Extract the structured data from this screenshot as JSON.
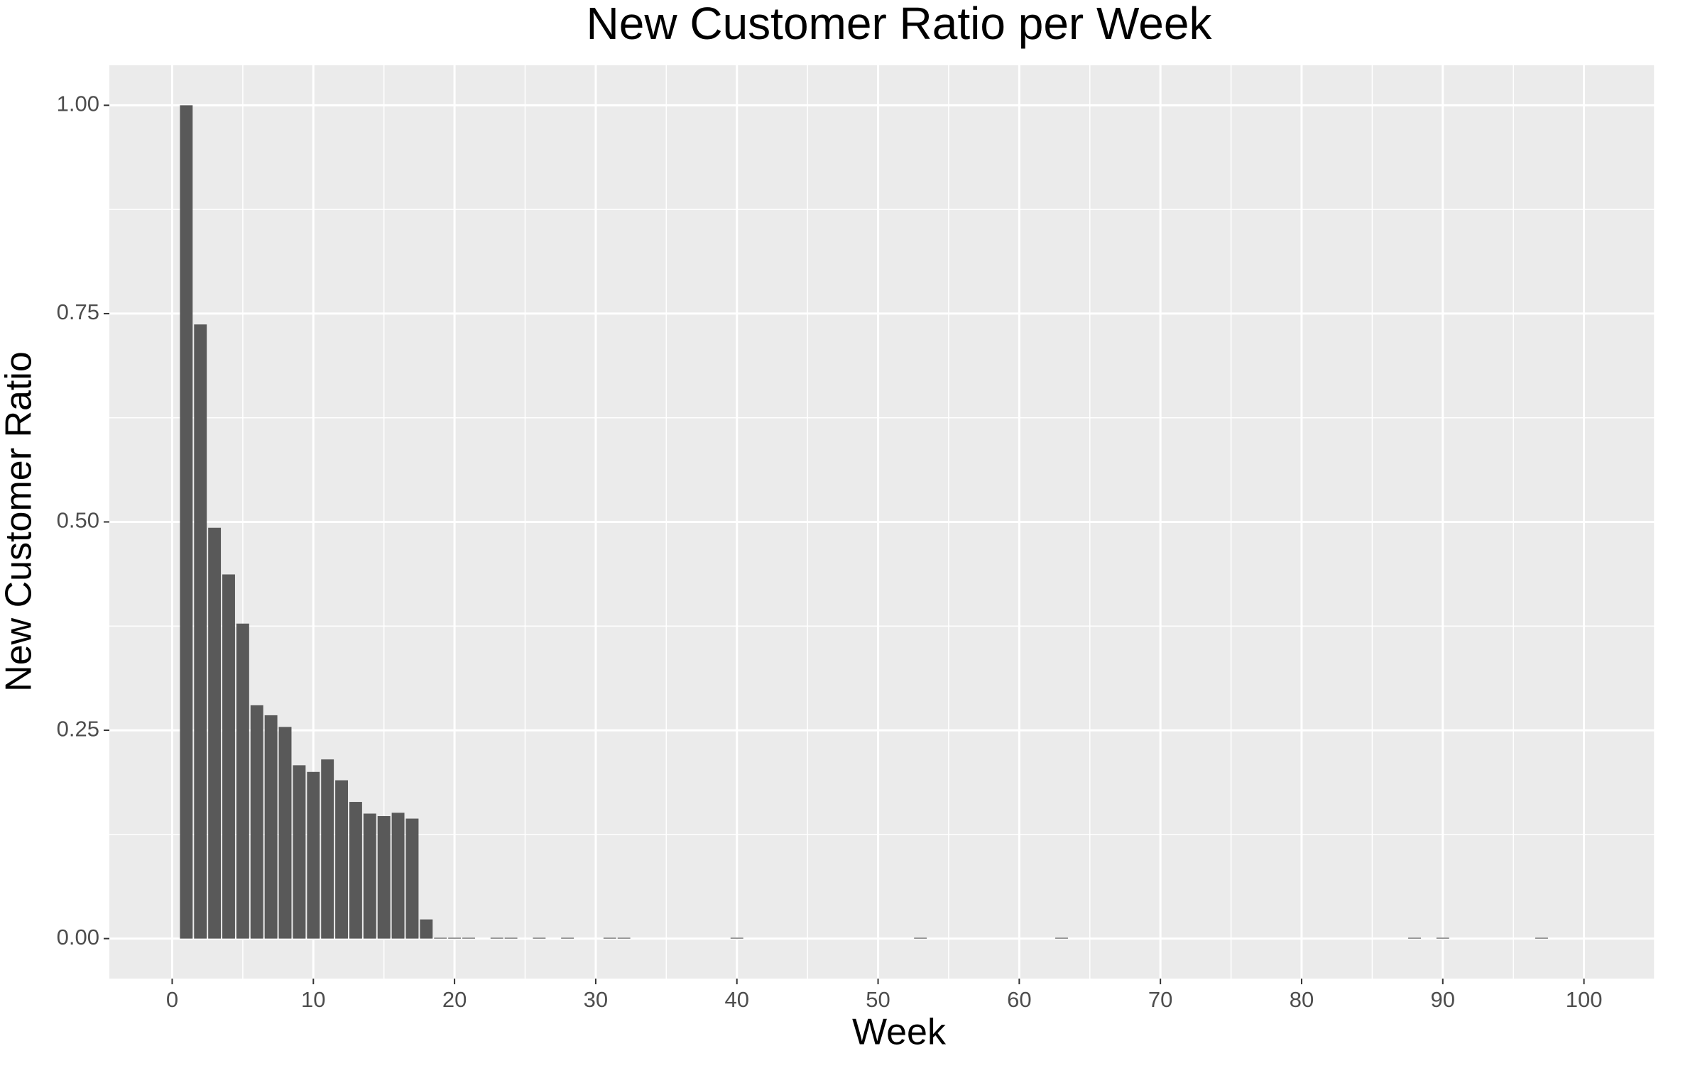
{
  "chart_data": {
    "type": "bar",
    "title": "New Customer Ratio per Week",
    "x_label": "Week",
    "y_label": "New Customer Ratio",
    "x": [
      1,
      2,
      3,
      4,
      5,
      6,
      7,
      8,
      9,
      10,
      11,
      12,
      13,
      14,
      15,
      16,
      17,
      18,
      19,
      20,
      21,
      23,
      24,
      26,
      28,
      31,
      32,
      40,
      53,
      63,
      88,
      90,
      97
    ],
    "values": [
      1.0,
      0.737,
      0.493,
      0.437,
      0.378,
      0.28,
      0.268,
      0.254,
      0.208,
      0.2,
      0.215,
      0.19,
      0.164,
      0.15,
      0.147,
      0.151,
      0.144,
      0.023,
      0.001,
      0.001,
      0.001,
      0.001,
      0.001,
      0.001,
      0.001,
      0.001,
      0.001,
      0.001,
      0.001,
      0.001,
      0.001,
      0.001,
      0.001
    ],
    "color": "#595959",
    "xlim": [
      -4.45,
      105
    ],
    "ylim": [
      -0.048,
      1.048
    ],
    "xticks": [
      0,
      10,
      20,
      30,
      40,
      50,
      60,
      70,
      80,
      90,
      100
    ],
    "yticks": [
      {
        "value": 0,
        "label": "0.00"
      },
      {
        "value": 0.25,
        "label": "0.25"
      },
      {
        "value": 0.5,
        "label": "0.50"
      },
      {
        "value": 0.75,
        "label": "0.75"
      },
      {
        "value": 1,
        "label": "1.00"
      }
    ],
    "grid": true
  }
}
